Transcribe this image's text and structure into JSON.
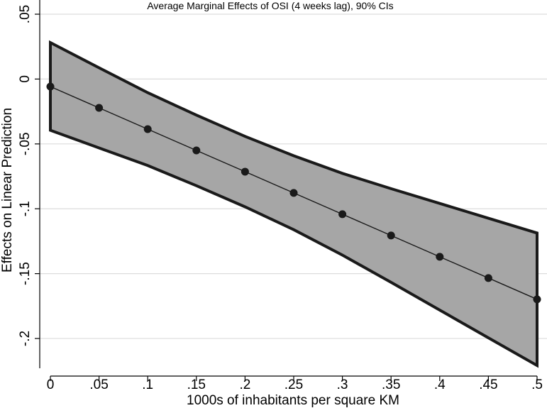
{
  "chart_data": {
    "type": "line",
    "title": "Average Marginal Effects of OSI (4 weeks lag),  90% CIs",
    "xlabel": "1000s of inhabitants per square KM",
    "ylabel": "Effects on Linear Prediction",
    "x": [
      0,
      0.05,
      0.1,
      0.15,
      0.2,
      0.25,
      0.3,
      0.35,
      0.4,
      0.45,
      0.5
    ],
    "x_tick_values": [
      0,
      0.05,
      0.1,
      0.15,
      0.2,
      0.25,
      0.3,
      0.35,
      0.4,
      0.45,
      0.5
    ],
    "x_tick_labels": [
      "0",
      ".05",
      ".1",
      ".15",
      ".2",
      ".25",
      ".3",
      ".35",
      ".4",
      ".45",
      ".5"
    ],
    "y_tick_values": [
      0.05,
      0,
      -0.05,
      -0.1,
      -0.15,
      -0.2
    ],
    "y_tick_labels": [
      ".05",
      "0",
      "-.05",
      "-.1",
      "-.15",
      "-.2"
    ],
    "xlim": [
      0,
      0.5
    ],
    "ylim": [
      -0.2235,
      0.05
    ],
    "grid": true,
    "series": [
      {
        "name": "Average marginal effect",
        "values": [
          -0.0058,
          -0.0222,
          -0.0386,
          -0.055,
          -0.0714,
          -0.0878,
          -0.1042,
          -0.1206,
          -0.137,
          -0.1534,
          -0.1698
        ],
        "lower_ci": [
          -0.0395,
          -0.0531,
          -0.0667,
          -0.0822,
          -0.0985,
          -0.1161,
          -0.1357,
          -0.1567,
          -0.1781,
          -0.1995,
          -0.2208
        ],
        "upper_ci": [
          0.0281,
          0.0087,
          -0.0105,
          -0.0278,
          -0.0442,
          -0.0591,
          -0.0727,
          -0.0845,
          -0.0959,
          -0.1073,
          -0.1187
        ]
      }
    ],
    "colors": {
      "band_fill": "#a6a6a6",
      "band_edge": "#1a1a1a",
      "line": "#1a1a1a",
      "marker": "#1a1a1a",
      "grid": "#dcdcdc"
    }
  }
}
